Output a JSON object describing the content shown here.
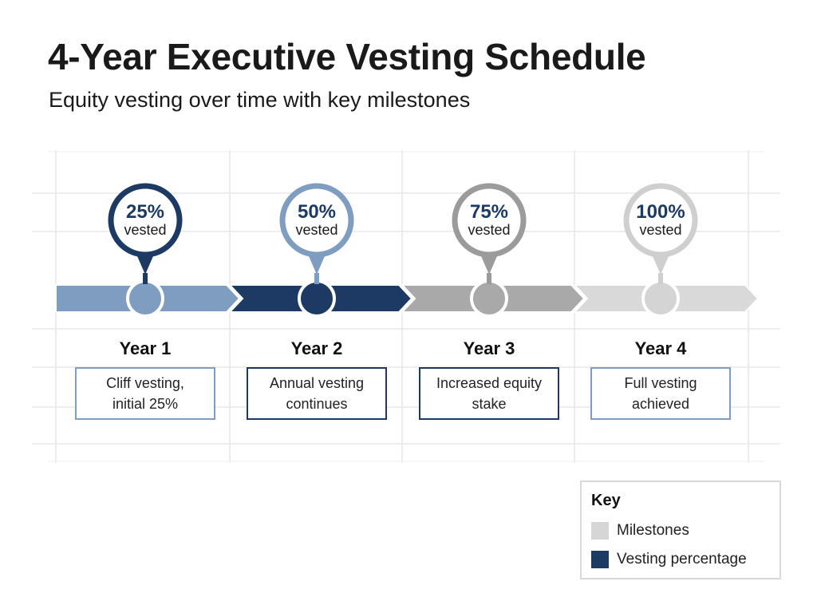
{
  "title": "4-Year Executive Vesting Schedule",
  "subtitle": "Equity vesting over time with key milestones",
  "milestones": [
    {
      "percent": "25%",
      "vested_label": "vested",
      "year": "Year 1",
      "description": [
        "Cliff vesting,",
        "initial 25%"
      ],
      "pin_color": "#1c3a64",
      "bar_color": "#7f9dc1",
      "node_fill": "#7f9dc1",
      "box_border": "#7f9dc1",
      "text_color": "#1c3a64"
    },
    {
      "percent": "50%",
      "vested_label": "vested",
      "year": "Year 2",
      "description": [
        "Annual vesting",
        "continues"
      ],
      "pin_color": "#7f9dc1",
      "bar_color": "#1c3a64",
      "node_fill": "#1c3a64",
      "box_border": "#1c3a64",
      "text_color": "#1c3a64"
    },
    {
      "percent": "75%",
      "vested_label": "vested",
      "year": "Year 3",
      "description": [
        "Increased equity",
        "stake"
      ],
      "pin_color": "#9b9b9b",
      "bar_color": "#a9a9a9",
      "node_fill": "#a9a9a9",
      "box_border": "#1c3a64",
      "text_color": "#1c3a64"
    },
    {
      "percent": "100%",
      "vested_label": "vested",
      "year": "Year 4",
      "description": [
        "Full vesting",
        "achieved"
      ],
      "pin_color": "#cfcfcf",
      "bar_color": "#d9d9d9",
      "node_fill": "#d4d4d4",
      "box_border": "#7f9dc1",
      "text_color": "#1c3a64"
    }
  ],
  "legend": {
    "title": "Key",
    "items": [
      {
        "label": "Milestones",
        "color": "#d6d6d6"
      },
      {
        "label": "Vesting percentage",
        "color": "#1c3a64"
      }
    ]
  }
}
